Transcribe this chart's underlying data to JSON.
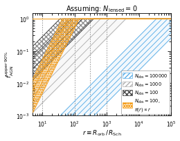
{
  "title": "Assuming: $N_{\\mathrm{lensed}} = 0$",
  "xlabel": "$r \\equiv R_{\\mathrm{orb}} \\, / \\, R_{\\mathrm{Sch}}$",
  "ylabel": "$f_{\\mathrm{AGN}}^{\\mathrm{upper}\\,90\\%}$",
  "xlim": [
    5,
    100000.0
  ],
  "ylim": [
    0.001,
    1.5
  ],
  "blue_color": "#5aaee8",
  "orange_color": "#f5a020",
  "gray_color": "#b0b0b0",
  "dark_color": "#444444",
  "vlines": [
    10,
    100,
    300,
    1000
  ],
  "N_blue": 100000,
  "N_gray": 1000,
  "N_dark": 100,
  "N_orange": 100,
  "n_lines_blue": 7,
  "n_lines_gray": 5,
  "n_lines_dark": 4,
  "n_lines_orange": 4,
  "scale_min": 0.3,
  "scale_max": 3.0
}
